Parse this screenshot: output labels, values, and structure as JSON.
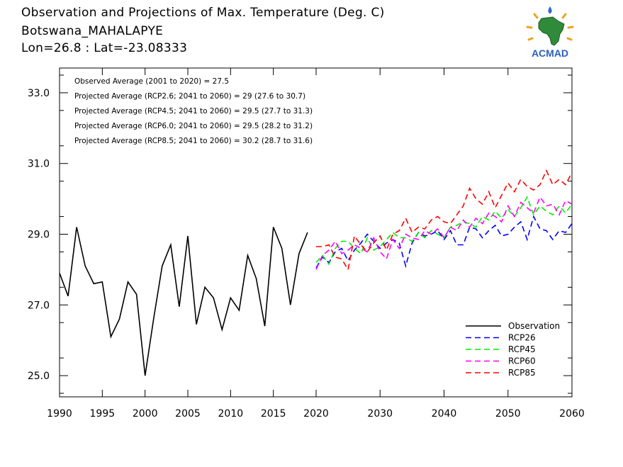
{
  "header": {
    "title": "Observation and Projections of Max. Temperature (Deg. C)",
    "location": "Botswana_MAHALAPYE",
    "coords": "Lon=26.8 : Lat=-23.08333"
  },
  "logo": {
    "text": "ACMAD",
    "icon": "africa-map-sun-icon"
  },
  "chart_data": {
    "type": "line",
    "title": "Observation and Projections of Max. Temperature (Deg. C)",
    "xlabel": "",
    "ylabel": "",
    "xlim": [
      1990,
      2060
    ],
    "ylim": [
      24.4,
      33.7
    ],
    "y_ticks": [
      25.0,
      27.0,
      29.0,
      31.0,
      33.0
    ],
    "y_tick_labels": [
      "25.0",
      "27.0",
      "29.0",
      "31.0",
      "33.0"
    ],
    "x_tick_labels": [
      "1990",
      "1995",
      "2000",
      "2005",
      "2010",
      "2015",
      "2020",
      "2030",
      "2040",
      "2050",
      "2060"
    ],
    "x_tick_values": [
      1990,
      1995,
      2000,
      2005,
      2010,
      2015,
      2020,
      2030,
      2040,
      2050,
      2060
    ],
    "x_axis_note": "piecewise scale: 1990-2020 compressed (~4.85 units/yr at 610px), 2020-2060 ~9.05 units/yr",
    "annotations": [
      "Observed Average (2001 to 2020) = 27.5",
      "Projected Average (RCP2.6; 2041 to 2060) = 29 (27.6 to 30.7)",
      "Projected Average (RCP4.5; 2041 to 2060) = 29.5 (27.7 to 31.3)",
      "Projected Average (RCP6.0; 2041 to 2060) = 29.5 (28.2 to 31.2)",
      "Projected Average (RCP8.5; 2041 to 2060) = 30.2 (28.7 to 31.6)"
    ],
    "legend_position": "bottom-right",
    "series": [
      {
        "name": "Observation",
        "color": "#000000",
        "dashed": false,
        "x": [
          1990,
          1991,
          1992,
          1993,
          1994,
          1995,
          1996,
          1997,
          1998,
          1999,
          2000,
          2001,
          2002,
          2003,
          2004,
          2005,
          2006,
          2007,
          2008,
          2009,
          2010,
          2011,
          2012,
          2013,
          2014,
          2015,
          2016,
          2017,
          2018,
          2019
        ],
        "values": [
          27.9,
          27.25,
          29.2,
          28.1,
          27.6,
          27.65,
          26.1,
          26.6,
          27.65,
          27.3,
          25.0,
          26.6,
          28.1,
          28.7,
          26.95,
          28.95,
          26.45,
          27.5,
          27.2,
          26.3,
          27.2,
          26.85,
          28.4,
          27.75,
          26.4,
          29.2,
          28.6,
          27.0,
          28.45,
          29.05
        ]
      },
      {
        "name": "RCP26",
        "color": "#0000ff",
        "dashed": true,
        "x": [
          2020,
          2021,
          2022,
          2023,
          2024,
          2025,
          2026,
          2027,
          2028,
          2029,
          2030,
          2031,
          2032,
          2033,
          2034,
          2035,
          2036,
          2037,
          2038,
          2039,
          2040,
          2041,
          2042,
          2043,
          2044,
          2045,
          2046,
          2047,
          2048,
          2049,
          2050,
          2051,
          2052,
          2053,
          2054,
          2055,
          2056,
          2057,
          2058,
          2059,
          2060
        ],
        "values": [
          28.05,
          28.35,
          28.2,
          28.5,
          28.6,
          28.25,
          28.55,
          28.75,
          29.0,
          28.8,
          28.6,
          28.75,
          28.85,
          28.75,
          28.1,
          28.75,
          29.05,
          28.95,
          29.0,
          29.1,
          28.85,
          29.1,
          28.7,
          28.7,
          29.2,
          29.15,
          28.9,
          29.1,
          29.25,
          28.95,
          29.0,
          29.2,
          29.35,
          28.85,
          29.5,
          29.15,
          29.1,
          28.85,
          29.1,
          29.05,
          29.3
        ]
      },
      {
        "name": "RCP45",
        "color": "#00ee00",
        "dashed": true,
        "x": [
          2020,
          2021,
          2022,
          2023,
          2024,
          2025,
          2026,
          2027,
          2028,
          2029,
          2030,
          2031,
          2032,
          2033,
          2034,
          2035,
          2036,
          2037,
          2038,
          2039,
          2040,
          2041,
          2042,
          2043,
          2044,
          2045,
          2046,
          2047,
          2048,
          2049,
          2050,
          2051,
          2052,
          2053,
          2054,
          2055,
          2056,
          2057,
          2058,
          2059,
          2060
        ],
        "values": [
          28.2,
          28.4,
          28.15,
          28.6,
          28.8,
          28.8,
          28.6,
          28.45,
          28.9,
          28.55,
          28.65,
          28.85,
          29.05,
          28.9,
          28.9,
          28.8,
          29.05,
          28.9,
          29.1,
          29.0,
          28.9,
          29.2,
          29.25,
          29.35,
          29.3,
          29.2,
          29.5,
          29.4,
          29.65,
          29.45,
          29.7,
          29.5,
          29.75,
          30.05,
          29.55,
          29.8,
          29.65,
          29.55,
          29.8,
          29.6,
          29.85
        ]
      },
      {
        "name": "RCP60",
        "color": "#ff00ff",
        "dashed": true,
        "x": [
          2020,
          2021,
          2022,
          2023,
          2024,
          2025,
          2026,
          2027,
          2028,
          2029,
          2030,
          2031,
          2032,
          2033,
          2034,
          2035,
          2036,
          2037,
          2038,
          2039,
          2040,
          2041,
          2042,
          2043,
          2044,
          2045,
          2046,
          2047,
          2048,
          2049,
          2050,
          2051,
          2052,
          2053,
          2054,
          2055,
          2056,
          2057,
          2058,
          2059,
          2060
        ],
        "values": [
          28.0,
          28.4,
          28.55,
          28.8,
          28.45,
          28.55,
          28.7,
          28.6,
          28.5,
          28.9,
          28.5,
          28.3,
          28.85,
          28.6,
          29.0,
          28.9,
          28.85,
          29.1,
          29.0,
          29.15,
          28.9,
          29.2,
          29.1,
          29.4,
          29.2,
          29.45,
          29.3,
          29.6,
          29.5,
          29.35,
          29.8,
          29.5,
          29.9,
          29.75,
          29.6,
          30.05,
          29.8,
          29.85,
          29.55,
          29.95,
          29.85
        ]
      },
      {
        "name": "RCP85",
        "color": "#ff0000",
        "dashed": true,
        "x": [
          2020,
          2021,
          2022,
          2023,
          2024,
          2025,
          2026,
          2027,
          2028,
          2029,
          2030,
          2031,
          2032,
          2033,
          2034,
          2035,
          2036,
          2037,
          2038,
          2039,
          2040,
          2041,
          2042,
          2043,
          2044,
          2045,
          2046,
          2047,
          2048,
          2049,
          2050,
          2051,
          2052,
          2053,
          2054,
          2055,
          2056,
          2057,
          2058,
          2059,
          2060
        ],
        "values": [
          28.65,
          28.65,
          28.7,
          28.35,
          28.3,
          28.0,
          28.95,
          28.7,
          28.5,
          28.75,
          28.95,
          28.55,
          29.0,
          29.1,
          29.45,
          29.05,
          29.2,
          29.15,
          29.4,
          29.5,
          29.35,
          29.3,
          29.55,
          29.8,
          30.3,
          30.0,
          29.85,
          30.2,
          29.75,
          30.1,
          30.45,
          30.2,
          30.55,
          30.35,
          30.25,
          30.4,
          30.8,
          30.4,
          30.55,
          30.4,
          30.75
        ]
      }
    ]
  }
}
